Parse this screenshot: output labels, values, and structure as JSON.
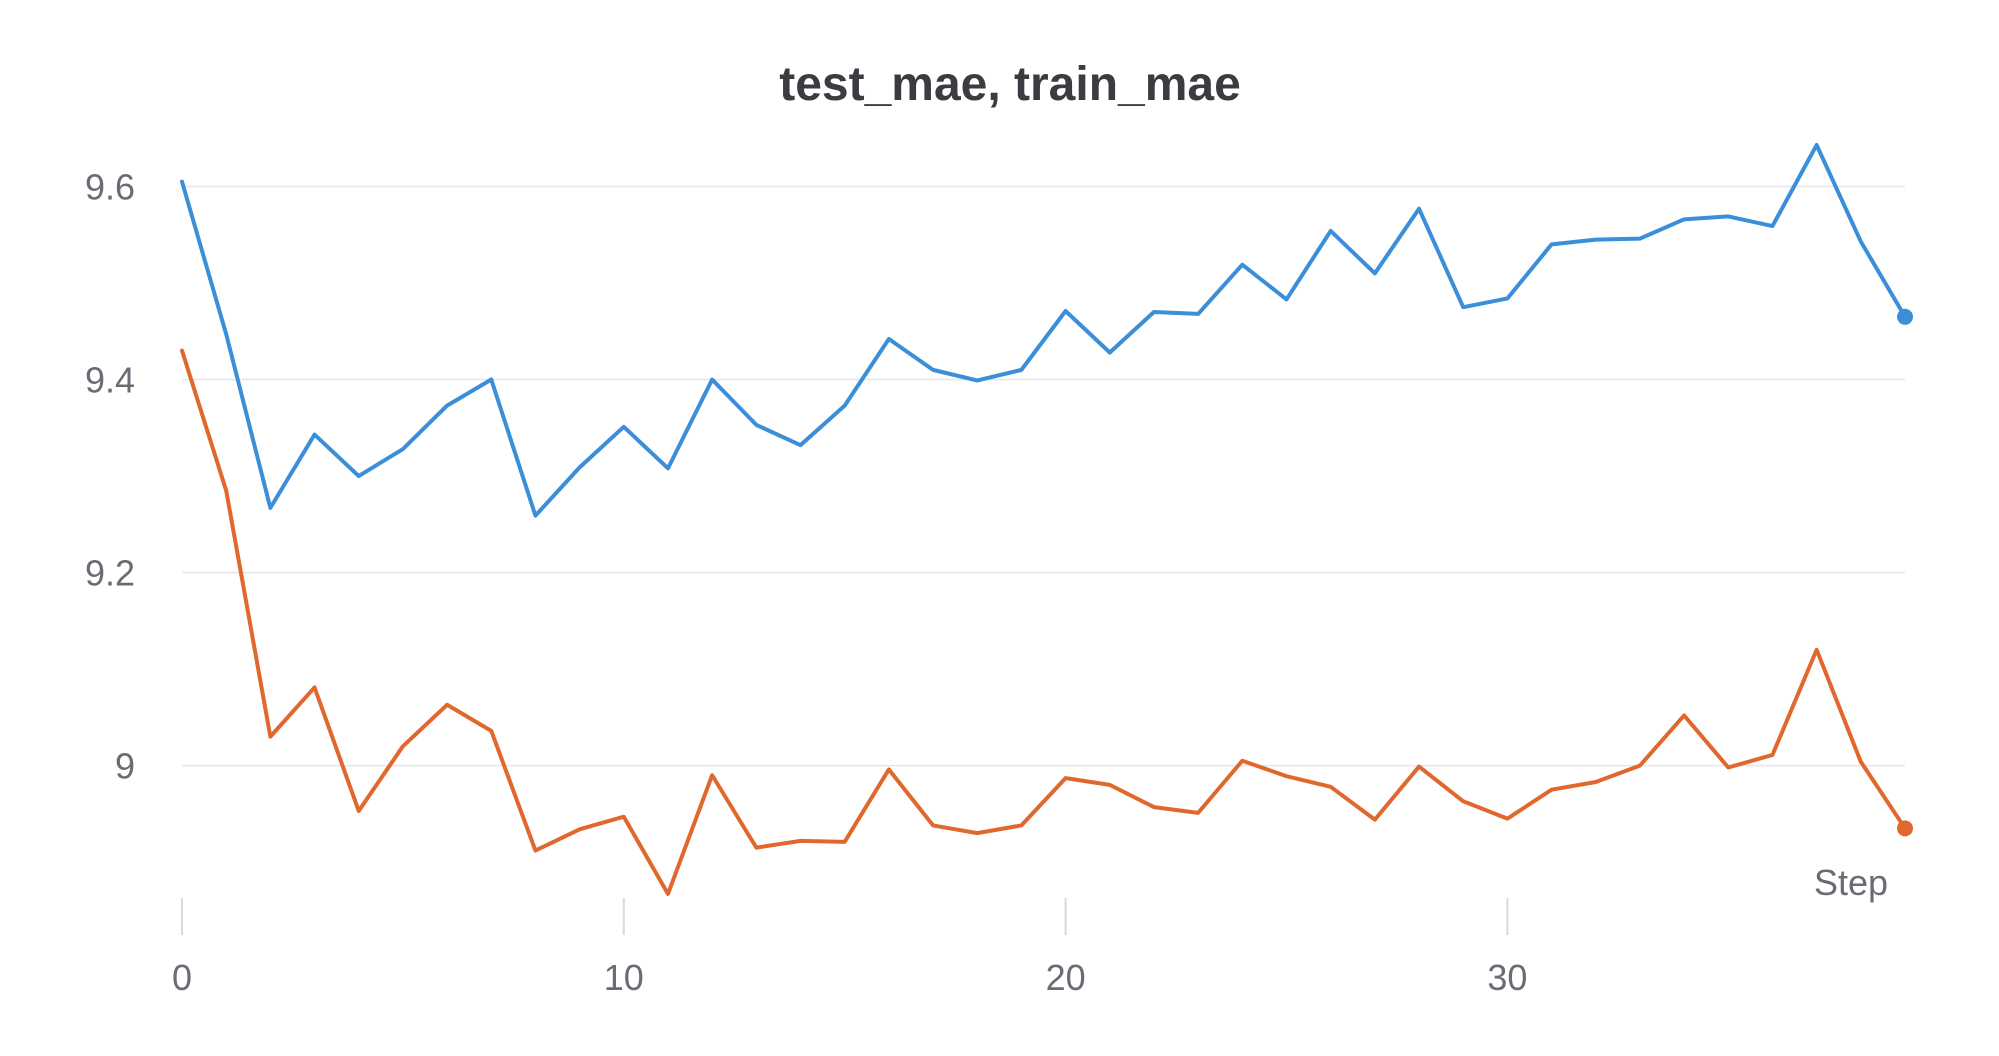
{
  "chart_data": {
    "type": "line",
    "title": "test_mae, train_mae",
    "xlabel": "Step",
    "ylabel": "",
    "xlim": [
      0,
      39
    ],
    "ylim": [
      8.84,
      9.7
    ],
    "x_ticks": [
      0,
      10,
      20,
      30
    ],
    "x_tick_labels": [
      "0",
      "10",
      "20",
      "30"
    ],
    "y_ticks": [
      9.0,
      9.2,
      9.4,
      9.6
    ],
    "y_tick_labels": [
      "9",
      "9.2",
      "9.4",
      "9.6"
    ],
    "grid": true,
    "x": [
      0,
      1,
      2,
      3,
      4,
      5,
      6,
      7,
      8,
      9,
      10,
      11,
      12,
      13,
      14,
      15,
      16,
      17,
      18,
      19,
      20,
      21,
      22,
      23,
      24,
      25,
      26,
      27,
      28,
      29,
      30,
      31,
      32,
      33,
      34,
      35,
      36,
      37,
      38,
      39
    ],
    "series": [
      {
        "color": "#3b8ed8",
        "values": [
          9.605,
          9.447,
          9.267,
          9.343,
          9.3,
          9.328,
          9.373,
          9.4,
          9.259,
          9.309,
          9.351,
          9.308,
          9.4,
          9.353,
          9.332,
          9.373,
          9.442,
          9.41,
          9.399,
          9.41,
          9.471,
          9.428,
          9.47,
          9.468,
          9.519,
          9.483,
          9.554,
          9.51,
          9.577,
          9.475,
          9.484,
          9.54,
          9.545,
          9.546,
          9.566,
          9.569,
          9.559,
          9.643,
          9.543,
          9.465
        ]
      },
      {
        "color": "#e0682d",
        "values": [
          9.43,
          9.285,
          9.03,
          9.081,
          8.953,
          9.02,
          9.063,
          9.036,
          8.912,
          8.934,
          8.947,
          8.867,
          8.99,
          8.915,
          8.922,
          8.921,
          8.996,
          8.938,
          8.93,
          8.938,
          8.987,
          8.98,
          8.957,
          8.951,
          9.005,
          8.989,
          8.978,
          8.944,
          8.999,
          8.963,
          8.945,
          8.975,
          8.983,
          9.0,
          9.052,
          8.998,
          9.011,
          9.12,
          9.004,
          8.935
        ]
      }
    ]
  }
}
